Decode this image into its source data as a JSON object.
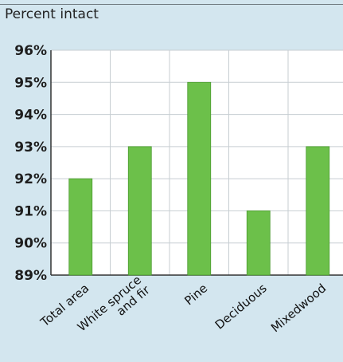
{
  "chart_data": {
    "type": "bar",
    "title": "Percent intact",
    "categories": [
      "Total area",
      "White spruce and fir",
      "Pine",
      "Deciduous",
      "Mixedwood"
    ],
    "category_lines": [
      [
        "Total area"
      ],
      [
        "White spruce",
        "and fir"
      ],
      [
        "Pine"
      ],
      [
        "Deciduous"
      ],
      [
        "Mixedwood"
      ]
    ],
    "values": [
      92,
      93,
      95,
      91,
      93
    ],
    "ylim": [
      89,
      96
    ],
    "yticks": [
      96,
      95,
      94,
      93,
      92,
      91,
      90,
      89
    ],
    "ytick_labels": [
      "96%",
      "95%",
      "94%",
      "93%",
      "92%",
      "91%",
      "90%",
      "89%"
    ],
    "grid": true,
    "xlabel": "",
    "ylabel": ""
  },
  "colors": {
    "bar": "#6cc04a",
    "bar_edge": "#4a9a2e",
    "plot_background": "#ffffff",
    "figure_background": "#d3e6ef",
    "grid": "#c7ced2",
    "axis": "#333333"
  }
}
